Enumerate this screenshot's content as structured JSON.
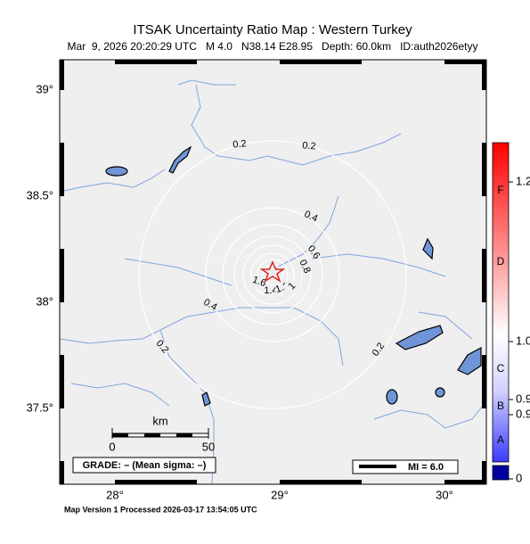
{
  "header": {
    "title": "ITSAK Uncertainty Ratio Map : Western Turkey",
    "subtitle": "Mar  9, 2026 20:20:29 UTC   M 4.0   N38.14 E28.95   Depth: 60.0km   ID:auth2026etyy"
  },
  "map": {
    "lat_labels": [
      "39°",
      "38.5°",
      "38°",
      "37.5°"
    ],
    "lon_labels": [
      "28°",
      "29°",
      "30°"
    ],
    "contour_labels": [
      "0.2",
      "0.2",
      "0.4",
      "0.6",
      "0.8",
      "1.6",
      "1.4",
      "1.2",
      "1",
      "0.4",
      "0.2",
      "0.2"
    ],
    "scale": {
      "unit": "km",
      "labels": [
        "0",
        "50"
      ]
    },
    "grade": "GRADE: – (Mean sigma: –)",
    "legend": "MI = 6.0"
  },
  "colorbar": {
    "grades": [
      "F",
      "D",
      "C",
      "B",
      "A"
    ],
    "labels": [
      "1.2",
      "1.0",
      "0.9",
      "0.9",
      "0"
    ]
  },
  "footer": "Map Version 1 Processed 2026-03-17 13:54:05 UTC"
}
